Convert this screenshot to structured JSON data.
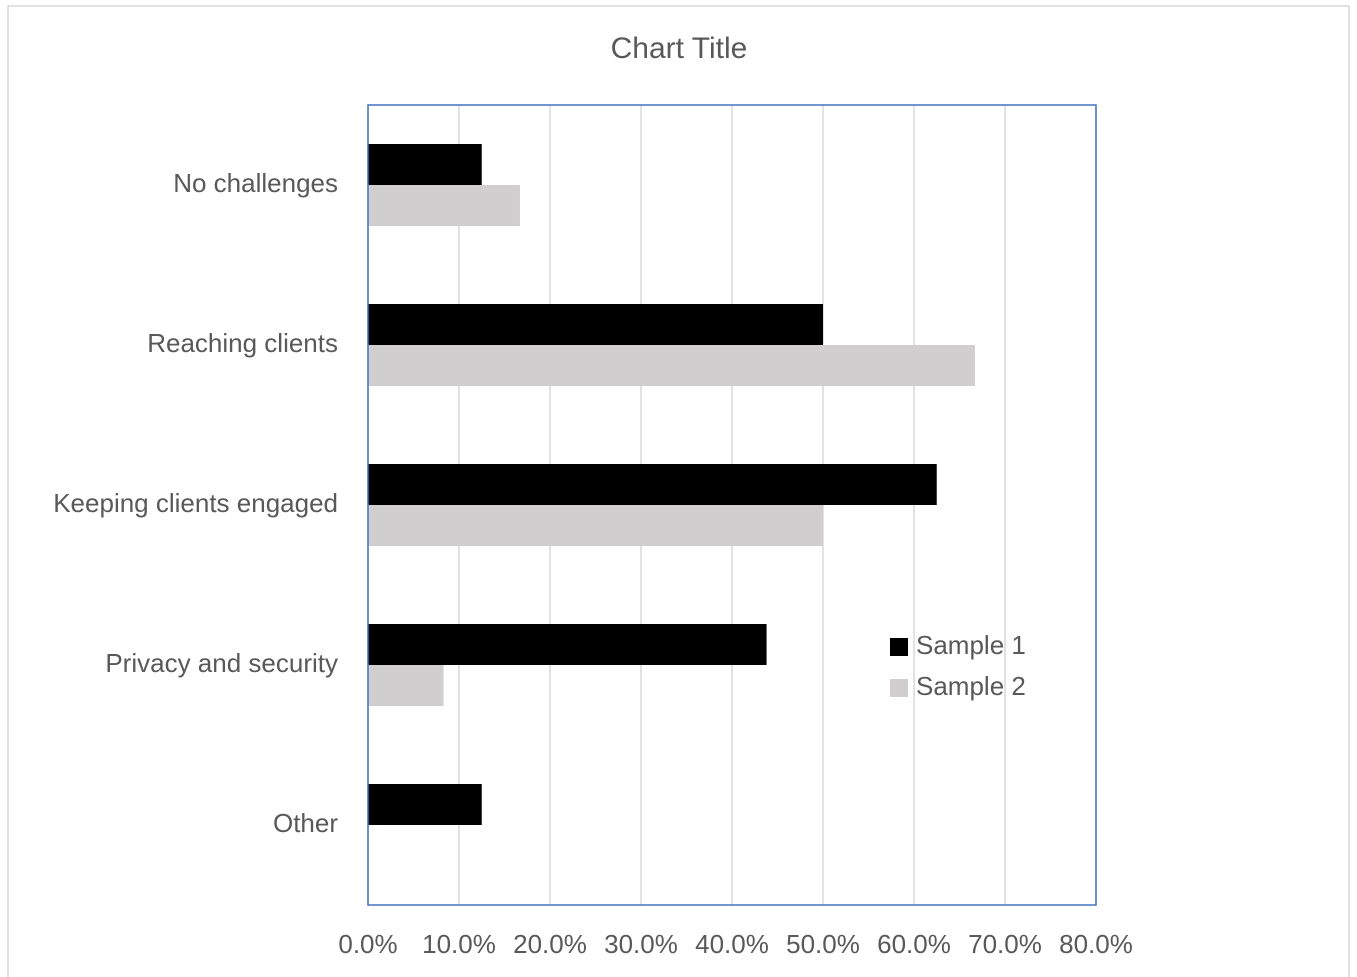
{
  "chart_data": {
    "type": "bar",
    "orientation": "horizontal",
    "title": "Chart Title",
    "categories": [
      "No challenges",
      "Reaching clients",
      "Keeping clients engaged",
      "Privacy and security",
      "Other"
    ],
    "series": [
      {
        "name": "Sample 1",
        "color": "#000000",
        "values": [
          12.5,
          50,
          62.5,
          43.8,
          12.5
        ]
      },
      {
        "name": "Sample 2",
        "color": "#d0cece",
        "values": [
          16.7,
          66.7,
          50,
          8.3,
          0
        ]
      }
    ],
    "xlim": [
      0,
      80
    ],
    "xticks": [
      {
        "value": 0,
        "label": "0.0%"
      },
      {
        "value": 10,
        "label": "10.0%"
      },
      {
        "value": 20,
        "label": "20.0%"
      },
      {
        "value": 30,
        "label": "30.0%"
      },
      {
        "value": 40,
        "label": "40.0%"
      },
      {
        "value": 50,
        "label": "50.0%"
      },
      {
        "value": 60,
        "label": "60.0%"
      },
      {
        "value": 70,
        "label": "70.0%"
      },
      {
        "value": 80,
        "label": "80.0%"
      }
    ],
    "grid": true,
    "legend_position": "right"
  }
}
